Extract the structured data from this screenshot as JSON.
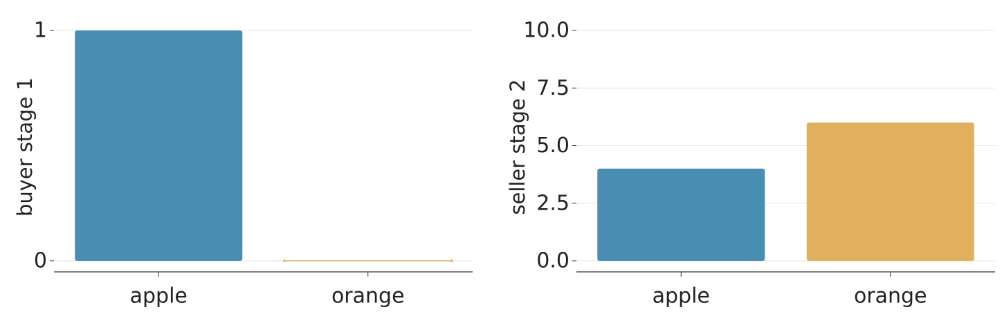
{
  "chart_data": [
    {
      "type": "bar",
      "categories": [
        "apple",
        "orange"
      ],
      "values": [
        1,
        0
      ],
      "colors": [
        "#4a8db3",
        "#e0b05e"
      ],
      "xlabel": "",
      "ylabel": "buyer stage 1",
      "ylim": [
        0,
        1
      ],
      "yticks": [
        0,
        1
      ],
      "ytick_labels": [
        "0",
        "1"
      ],
      "grid": "horizontal",
      "legend": "none"
    },
    {
      "type": "bar",
      "categories": [
        "apple",
        "orange"
      ],
      "values": [
        4,
        6
      ],
      "colors": [
        "#4a8db3",
        "#e0b05e"
      ],
      "xlabel": "",
      "ylabel": "seller stage 2",
      "ylim": [
        0,
        10
      ],
      "yticks": [
        0,
        2.5,
        5,
        7.5,
        10
      ],
      "ytick_labels": [
        "0.0",
        "2.5",
        "5.0",
        "7.5",
        "10.0"
      ],
      "grid": "horizontal",
      "legend": "none"
    }
  ]
}
